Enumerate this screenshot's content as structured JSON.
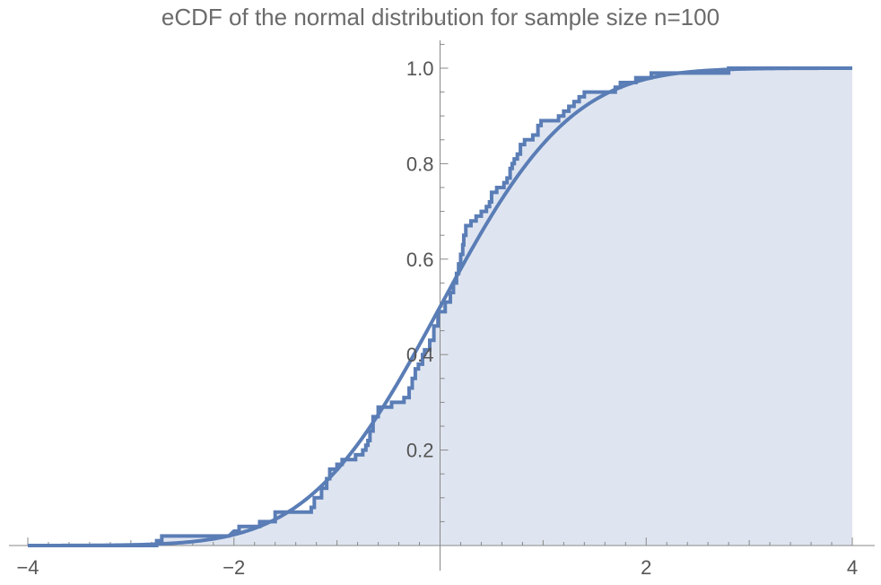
{
  "chart_data": {
    "type": "line",
    "title": "eCDF of the normal distribution for sample size n=100",
    "xlabel": "",
    "ylabel": "",
    "xlim": [
      -4,
      4
    ],
    "ylim": [
      0,
      1
    ],
    "x_ticks": [
      {
        "value": -4,
        "label": "−4"
      },
      {
        "value": -2,
        "label": "−2"
      },
      {
        "value": 2,
        "label": "2"
      },
      {
        "value": 4,
        "label": "4"
      }
    ],
    "y_ticks": [
      {
        "value": 0.2,
        "label": "0.2"
      },
      {
        "value": 0.4,
        "label": "0.4"
      },
      {
        "value": 0.6,
        "label": "0.6"
      },
      {
        "value": 0.8,
        "label": "0.8"
      },
      {
        "value": 1.0,
        "label": "1.0"
      }
    ],
    "grid": false,
    "colors": {
      "series": "#5a7db6",
      "fill": "#dfe5f0",
      "axis": "#888888",
      "title": "#6b6b6b"
    },
    "series": [
      {
        "kind": "step",
        "points": [
          [
            -4,
            0
          ],
          [
            -2.75,
            0
          ],
          [
            -2.75,
            0.01
          ],
          [
            -2.7,
            0.01
          ],
          [
            -2.7,
            0.02
          ],
          [
            -2.05,
            0.02
          ],
          [
            -2.0,
            0.03
          ],
          [
            -1.95,
            0.03
          ],
          [
            -1.95,
            0.04
          ],
          [
            -1.75,
            0.04
          ],
          [
            -1.75,
            0.05
          ],
          [
            -1.6,
            0.05
          ],
          [
            -1.6,
            0.07
          ],
          [
            -1.25,
            0.07
          ],
          [
            -1.25,
            0.08
          ],
          [
            -1.22,
            0.08
          ],
          [
            -1.22,
            0.1
          ],
          [
            -1.15,
            0.1
          ],
          [
            -1.15,
            0.12
          ],
          [
            -1.1,
            0.12
          ],
          [
            -1.1,
            0.14
          ],
          [
            -1.07,
            0.14
          ],
          [
            -1.07,
            0.16
          ],
          [
            -1.0,
            0.16
          ],
          [
            -1.0,
            0.17
          ],
          [
            -0.95,
            0.17
          ],
          [
            -0.95,
            0.18
          ],
          [
            -0.82,
            0.18
          ],
          [
            -0.82,
            0.19
          ],
          [
            -0.75,
            0.19
          ],
          [
            -0.75,
            0.2
          ],
          [
            -0.72,
            0.2
          ],
          [
            -0.72,
            0.21
          ],
          [
            -0.7,
            0.21
          ],
          [
            -0.7,
            0.22
          ],
          [
            -0.68,
            0.22
          ],
          [
            -0.68,
            0.24
          ],
          [
            -0.65,
            0.24
          ],
          [
            -0.65,
            0.27
          ],
          [
            -0.6,
            0.27
          ],
          [
            -0.6,
            0.29
          ],
          [
            -0.47,
            0.29
          ],
          [
            -0.47,
            0.3
          ],
          [
            -0.35,
            0.3
          ],
          [
            -0.35,
            0.31
          ],
          [
            -0.3,
            0.31
          ],
          [
            -0.3,
            0.33
          ],
          [
            -0.27,
            0.33
          ],
          [
            -0.27,
            0.35
          ],
          [
            -0.24,
            0.35
          ],
          [
            -0.24,
            0.37
          ],
          [
            -0.21,
            0.37
          ],
          [
            -0.21,
            0.38
          ],
          [
            -0.17,
            0.38
          ],
          [
            -0.17,
            0.4
          ],
          [
            -0.15,
            0.4
          ],
          [
            -0.15,
            0.41
          ],
          [
            -0.1,
            0.41
          ],
          [
            -0.1,
            0.43
          ],
          [
            -0.06,
            0.43
          ],
          [
            -0.06,
            0.46
          ],
          [
            -0.02,
            0.46
          ],
          [
            -0.02,
            0.49
          ],
          [
            0.05,
            0.49
          ],
          [
            0.05,
            0.51
          ],
          [
            0.1,
            0.51
          ],
          [
            0.1,
            0.53
          ],
          [
            0.13,
            0.53
          ],
          [
            0.13,
            0.55
          ],
          [
            0.16,
            0.55
          ],
          [
            0.16,
            0.57
          ],
          [
            0.18,
            0.57
          ],
          [
            0.18,
            0.59
          ],
          [
            0.2,
            0.59
          ],
          [
            0.2,
            0.61
          ],
          [
            0.22,
            0.61
          ],
          [
            0.22,
            0.63
          ],
          [
            0.23,
            0.63
          ],
          [
            0.23,
            0.65
          ],
          [
            0.25,
            0.65
          ],
          [
            0.25,
            0.67
          ],
          [
            0.3,
            0.67
          ],
          [
            0.3,
            0.68
          ],
          [
            0.35,
            0.68
          ],
          [
            0.35,
            0.69
          ],
          [
            0.4,
            0.69
          ],
          [
            0.4,
            0.7
          ],
          [
            0.45,
            0.7
          ],
          [
            0.45,
            0.71
          ],
          [
            0.48,
            0.71
          ],
          [
            0.48,
            0.72
          ],
          [
            0.5,
            0.72
          ],
          [
            0.5,
            0.74
          ],
          [
            0.55,
            0.74
          ],
          [
            0.55,
            0.75
          ],
          [
            0.62,
            0.75
          ],
          [
            0.62,
            0.76
          ],
          [
            0.65,
            0.76
          ],
          [
            0.65,
            0.77
          ],
          [
            0.68,
            0.77
          ],
          [
            0.68,
            0.79
          ],
          [
            0.7,
            0.79
          ],
          [
            0.7,
            0.8
          ],
          [
            0.72,
            0.8
          ],
          [
            0.72,
            0.81
          ],
          [
            0.75,
            0.81
          ],
          [
            0.75,
            0.82
          ],
          [
            0.78,
            0.82
          ],
          [
            0.78,
            0.84
          ],
          [
            0.82,
            0.84
          ],
          [
            0.82,
            0.85
          ],
          [
            0.9,
            0.85
          ],
          [
            0.9,
            0.86
          ],
          [
            0.95,
            0.86
          ],
          [
            0.95,
            0.88
          ],
          [
            0.98,
            0.88
          ],
          [
            0.98,
            0.89
          ],
          [
            1.15,
            0.89
          ],
          [
            1.15,
            0.9
          ],
          [
            1.2,
            0.9
          ],
          [
            1.2,
            0.91
          ],
          [
            1.25,
            0.91
          ],
          [
            1.25,
            0.92
          ],
          [
            1.3,
            0.92
          ],
          [
            1.3,
            0.93
          ],
          [
            1.35,
            0.93
          ],
          [
            1.35,
            0.94
          ],
          [
            1.4,
            0.94
          ],
          [
            1.4,
            0.95
          ],
          [
            1.7,
            0.95
          ],
          [
            1.7,
            0.96
          ],
          [
            1.75,
            0.96
          ],
          [
            1.75,
            0.97
          ],
          [
            1.9,
            0.97
          ],
          [
            1.9,
            0.98
          ],
          [
            2.05,
            0.98
          ],
          [
            2.05,
            0.99
          ],
          [
            2.8,
            0.99
          ],
          [
            2.8,
            1.0
          ],
          [
            4,
            1.0
          ]
        ]
      },
      {
        "kind": "normal-cdf",
        "mu": 0,
        "sigma": 1
      }
    ]
  }
}
